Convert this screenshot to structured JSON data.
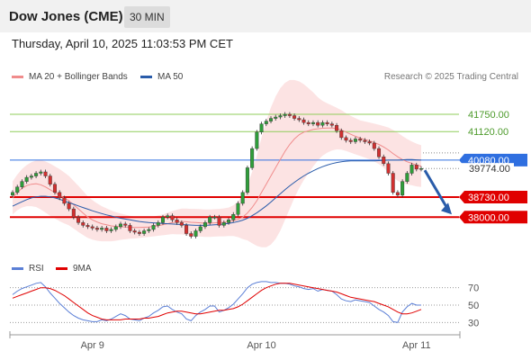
{
  "header": {
    "title": "Dow Jones (CME)",
    "interval": "30 MIN"
  },
  "timestamp": "Thursday, April 10, 2025 11:03:53 PM CET",
  "legend": {
    "ma20_label": "MA 20 + Bollinger Bands",
    "ma50_label": "MA 50",
    "ma20_color": "#f08c8c",
    "ma50_color": "#2a5caa",
    "rsi_label": "RSI",
    "rsi_color": "#5b7fd6",
    "ma9_label": "9MA",
    "ma9_color": "#e00000"
  },
  "copyright": "Research © 2025 Trading Central",
  "chart_data": {
    "type": "candlestick",
    "x_labels": [
      "Apr 9",
      "Apr 10",
      "Apr 11"
    ],
    "ylim": [
      36400,
      42800
    ],
    "levels": [
      {
        "value": 41750.0,
        "label": "41750.00",
        "style": "resistance",
        "color": "#8fce5a"
      },
      {
        "value": 41120.0,
        "label": "41120.00",
        "style": "resistance",
        "color": "#8fce5a"
      },
      {
        "value": 40080.0,
        "label": "40080.00",
        "style": "pivot",
        "color": "#2f6fe0"
      },
      {
        "value": 39774.0,
        "label": "39774.00",
        "style": "last",
        "color": "#333333"
      },
      {
        "value": 38730.0,
        "label": "38730.00",
        "style": "support",
        "color": "#e00000"
      },
      {
        "value": 38000.0,
        "label": "38000.00",
        "style": "support",
        "color": "#e00000"
      }
    ],
    "close": [
      38900,
      39100,
      39300,
      39450,
      39500,
      39600,
      39650,
      39500,
      39200,
      38900,
      38700,
      38500,
      38300,
      38000,
      37800,
      37700,
      37650,
      37600,
      37550,
      37600,
      37500,
      37550,
      37650,
      37750,
      37700,
      37500,
      37450,
      37400,
      37500,
      37550,
      37700,
      37800,
      38000,
      38050,
      37900,
      37800,
      37700,
      37400,
      37300,
      37500,
      37650,
      37800,
      38000,
      38000,
      37700,
      37800,
      37900,
      38100,
      38500,
      38900,
      39800,
      40500,
      41100,
      41400,
      41500,
      41600,
      41650,
      41700,
      41750,
      41700,
      41600,
      41550,
      41450,
      41400,
      41450,
      41350,
      41450,
      41400,
      41350,
      41150,
      40900,
      40800,
      40750,
      40850,
      40800,
      40750,
      40700,
      40500,
      40200,
      39950,
      39600,
      38900,
      38800,
      39300,
      39600,
      39900,
      39750,
      39774
    ],
    "ma20": [
      38700,
      38900,
      39050,
      39150,
      39200,
      39220,
      39180,
      39100,
      39000,
      38900,
      38800,
      38700,
      38600,
      38450,
      38300,
      38150,
      38000,
      37900,
      37820,
      37760,
      37720,
      37680,
      37660,
      37650,
      37640,
      37630,
      37620,
      37620,
      37630,
      37640,
      37660,
      37690,
      37720,
      37760,
      37800,
      37820,
      37840,
      37830,
      37810,
      37800,
      37790,
      37780,
      37780,
      37790,
      37800,
      37810,
      37830,
      37870,
      37920,
      38000,
      38150,
      38350,
      38600,
      38900,
      39200,
      39500,
      39800,
      40100,
      40400,
      40650,
      40850,
      41000,
      41100,
      41150,
      41200,
      41220,
      41240,
      41250,
      41250,
      41230,
      41180,
      41100,
      41020,
      40950,
      40880,
      40830,
      40780,
      40720,
      40650,
      40560,
      40450,
      40320,
      40200,
      40100,
      40020,
      39960,
      39900,
      39860
    ],
    "bb_width": [
      600,
      650,
      700,
      750,
      800,
      850,
      900,
      930,
      950,
      950,
      950,
      930,
      900,
      870,
      840,
      800,
      760,
      720,
      680,
      640,
      600,
      560,
      520,
      480,
      450,
      420,
      400,
      380,
      370,
      360,
      360,
      370,
      380,
      400,
      420,
      450,
      470,
      480,
      490,
      500,
      500,
      500,
      500,
      500,
      500,
      510,
      520,
      560,
      650,
      800,
      1000,
      1300,
      1650,
      2000,
      2300,
      2500,
      2600,
      2600,
      2500,
      2350,
      2150,
      1950,
      1750,
      1550,
      1350,
      1150,
      1000,
      900,
      820,
      760,
      720,
      690,
      670,
      660,
      650,
      660,
      670,
      690,
      720,
      760,
      820,
      860,
      880,
      860,
      830,
      800,
      780,
      760
    ],
    "ma50": [
      38400,
      38480,
      38560,
      38640,
      38700,
      38740,
      38760,
      38760,
      38740,
      38700,
      38650,
      38590,
      38530,
      38470,
      38410,
      38350,
      38290,
      38230,
      38180,
      38130,
      38080,
      38040,
      38000,
      37960,
      37930,
      37900,
      37870,
      37840,
      37820,
      37800,
      37790,
      37780,
      37770,
      37760,
      37750,
      37740,
      37730,
      37720,
      37710,
      37700,
      37700,
      37700,
      37710,
      37720,
      37730,
      37750,
      37770,
      37800,
      37840,
      37890,
      37960,
      38050,
      38160,
      38280,
      38410,
      38550,
      38700,
      38850,
      39000,
      39140,
      39270,
      39390,
      39500,
      39600,
      39690,
      39770,
      39840,
      39900,
      39950,
      39990,
      40020,
      40040,
      40050,
      40050,
      40050,
      40050,
      40050,
      40050,
      40060,
      40070,
      40080,
      40080,
      40080,
      40090,
      40100,
      40100,
      40090,
      40080
    ],
    "rsi": [
      62,
      66,
      69,
      71,
      73,
      75,
      76,
      71,
      64,
      58,
      52,
      47,
      42,
      38,
      35,
      33,
      32,
      31,
      31,
      33,
      32,
      34,
      37,
      40,
      38,
      34,
      33,
      32,
      35,
      37,
      41,
      44,
      48,
      49,
      45,
      42,
      40,
      34,
      32,
      38,
      42,
      45,
      49,
      49,
      42,
      44,
      47,
      51,
      57,
      63,
      70,
      74,
      76,
      77,
      77,
      76,
      76,
      75,
      75,
      74,
      72,
      71,
      69,
      68,
      69,
      66,
      68,
      67,
      66,
      62,
      57,
      55,
      54,
      56,
      55,
      54,
      53,
      49,
      45,
      42,
      38,
      31,
      30,
      42,
      48,
      52,
      50,
      50
    ],
    "rsi_ma9": [
      58,
      60,
      62,
      64,
      66,
      68,
      70,
      70,
      69,
      67,
      64,
      61,
      57,
      53,
      49,
      45,
      41,
      38,
      36,
      34,
      33,
      33,
      33,
      33,
      34,
      34,
      34,
      34,
      35,
      35,
      36,
      37,
      39,
      41,
      42,
      43,
      43,
      42,
      41,
      40,
      40,
      41,
      42,
      43,
      44,
      44,
      45,
      46,
      48,
      51,
      55,
      59,
      63,
      67,
      70,
      72,
      74,
      75,
      75,
      75,
      74,
      73,
      72,
      71,
      70,
      69,
      68,
      67,
      66,
      65,
      63,
      61,
      59,
      58,
      57,
      56,
      55,
      54,
      52,
      50,
      48,
      45,
      42,
      40,
      40,
      41,
      43,
      45
    ],
    "rsi_levels": [
      {
        "value": 70,
        "label": "70"
      },
      {
        "value": 50,
        "label": "50"
      },
      {
        "value": 30,
        "label": "30"
      }
    ],
    "rsi_ylim": [
      20,
      80
    ]
  }
}
